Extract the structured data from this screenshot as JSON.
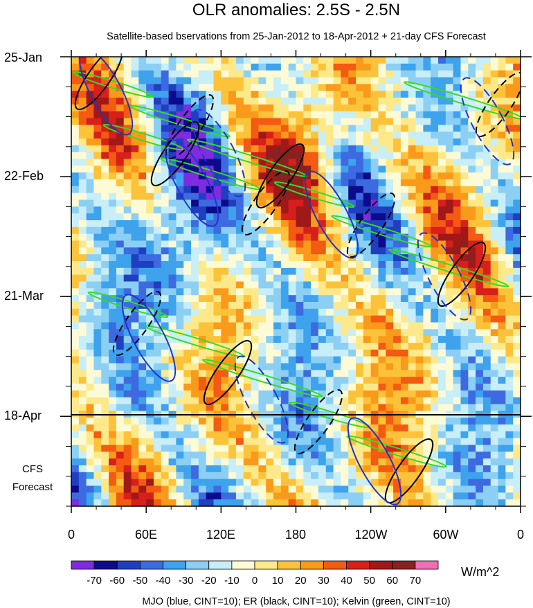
{
  "chart_data": {
    "type": "heatmap",
    "title": "OLR anomalies: 2.5S - 2.5N",
    "subtitle": "Satellite-based bservations from 25-Jan-2012 to 18-Apr-2012 + 21-day CFS Forecast",
    "x_tick_labels": [
      "0",
      "60E",
      "120E",
      "180",
      "120W",
      "60W",
      "0"
    ],
    "x_ticks_deg_east": [
      0,
      60,
      120,
      180,
      240,
      300,
      360
    ],
    "xlim": [
      0,
      360
    ],
    "y_tick_labels": [
      "25-Jan",
      "22-Feb",
      "21-Mar",
      "18-Apr"
    ],
    "y_ticks": [
      "2012-01-25",
      "2012-02-22",
      "2012-03-21",
      "2012-04-18"
    ],
    "ylim": [
      "2012-01-25",
      "2012-05-09"
    ],
    "observation_end": "2012-04-18",
    "forecast_label_line1": "CFS",
    "forecast_label_line2": "Forecast",
    "colorbar": {
      "labels": [
        "-70",
        "-60",
        "-50",
        "-40",
        "-30",
        "-20",
        "-10",
        "0",
        "10",
        "20",
        "30",
        "40",
        "50",
        "60",
        "70"
      ],
      "colors": [
        "#7f2be0",
        "#0b0b8c",
        "#1f3fbf",
        "#3d6ae0",
        "#3ea2ec",
        "#8ccff4",
        "#c8eef8",
        "#fdfbd6",
        "#fde98a",
        "#fcc33a",
        "#f99a1b",
        "#f35a12",
        "#d71f1c",
        "#a01818",
        "#8a2020",
        "#f06eb4"
      ],
      "units": "W/m^2"
    },
    "contours": "MJO (blue, CINT=10); ER (black, CINT=10); Kelvin (green, CINT=10)",
    "contour_colors": {
      "mjo": "#2233cc",
      "er": "#000000",
      "kelvin": "#33dd22"
    }
  }
}
